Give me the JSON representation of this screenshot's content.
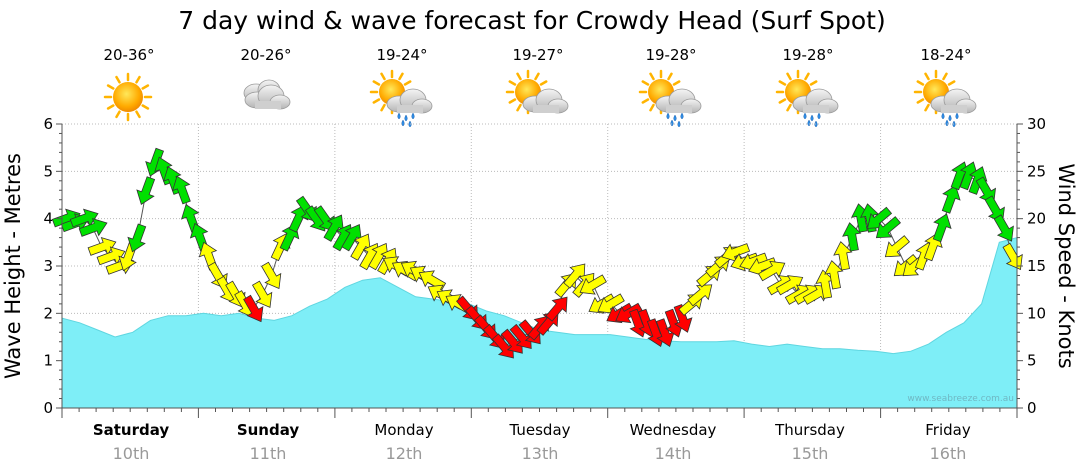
{
  "chart_data": {
    "type": "area",
    "title": "7 day wind & wave forecast for Crowdy Head (Surf Spot)",
    "ylabel_left": "Wave Height - Metres",
    "ylabel_right": "Wind Speed - Knots",
    "ylim_left": [
      0,
      6
    ],
    "ylim_right": [
      0,
      30
    ],
    "yticks_left": [
      "0",
      "1",
      "2",
      "3",
      "4",
      "5",
      "6"
    ],
    "yticks_right": [
      "0",
      "5",
      "10",
      "15",
      "20",
      "25",
      "30"
    ],
    "credit": "www.seabreeze.com.au",
    "days": [
      {
        "name": "Saturday",
        "date": "10th",
        "temp": "20-36°",
        "icon": "sunny-icon",
        "bold": true
      },
      {
        "name": "Sunday",
        "date": "11th",
        "temp": "20-26°",
        "icon": "cloudy-icon",
        "bold": true
      },
      {
        "name": "Monday",
        "date": "12th",
        "temp": "19-24°",
        "icon": "sun-cloud-rain-icon",
        "bold": false
      },
      {
        "name": "Tuesday",
        "date": "13th",
        "temp": "19-27°",
        "icon": "sun-cloud-icon",
        "bold": false
      },
      {
        "name": "Wednesday",
        "date": "14th",
        "temp": "19-28°",
        "icon": "sun-cloud-shower-icon",
        "bold": false
      },
      {
        "name": "Thursday",
        "date": "15th",
        "temp": "19-28°",
        "icon": "sun-cloud-rain-icon",
        "bold": false
      },
      {
        "name": "Friday",
        "date": "16th",
        "temp": "18-24°",
        "icon": "sun-cloud-rain-icon",
        "bold": false
      }
    ],
    "wave_height_m": [
      1.9,
      1.8,
      1.65,
      1.5,
      1.6,
      1.85,
      1.95,
      1.95,
      2.0,
      1.95,
      2.0,
      1.9,
      1.85,
      1.95,
      2.15,
      2.3,
      2.55,
      2.7,
      2.75,
      2.55,
      2.35,
      2.3,
      2.25,
      2.2,
      2.05,
      1.95,
      1.8,
      1.65,
      1.6,
      1.55,
      1.55,
      1.55,
      1.5,
      1.45,
      1.42,
      1.4,
      1.4,
      1.4,
      1.42,
      1.35,
      1.3,
      1.35,
      1.3,
      1.25,
      1.25,
      1.22,
      1.2,
      1.15,
      1.2,
      1.35,
      1.6,
      1.8,
      2.2,
      3.5,
      3.6
    ],
    "wind_speed_kn": [
      20,
      19.5,
      20,
      19,
      17,
      16,
      15,
      16,
      18,
      23,
      26,
      25,
      24,
      23,
      20,
      18,
      16,
      14,
      12.5,
      12,
      11,
      10.5,
      12,
      14,
      17,
      18,
      20,
      21,
      20,
      20,
      19,
      18,
      18,
      17,
      16,
      16,
      15.5,
      15,
      14.5,
      14.5,
      14,
      13.5,
      12,
      11.5,
      11,
      10.5,
      9.5,
      8.5,
      7.5,
      6.5,
      7,
      7.5,
      8,
      8.5,
      9,
      10.5,
      13,
      14,
      13,
      13,
      11,
      11,
      10,
      10,
      9,
      9,
      8,
      8,
      9,
      9.5,
      11,
      12,
      14,
      15,
      16,
      16.5,
      15.5,
      15.5,
      15,
      14.5,
      13,
      13,
      12,
      12,
      12,
      13,
      14,
      16,
      18,
      20,
      20,
      20,
      19,
      17,
      15,
      15,
      16,
      17,
      19,
      22,
      24.5,
      24.5,
      24,
      23,
      21,
      19,
      16
    ],
    "wind_colors": {
      "light": "#00e000",
      "moderate": "#ffff00",
      "strong": "#ff0000"
    }
  }
}
